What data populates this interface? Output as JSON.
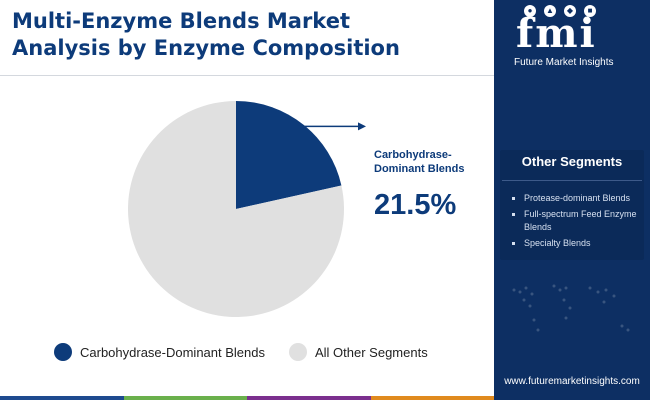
{
  "title": {
    "line1": "Multi-Enzyme Blends Market",
    "line2": "Analysis by Enzyme Composition"
  },
  "chart_data": {
    "type": "pie",
    "slices": [
      {
        "label": "Carbohydrase-Dominant Blends",
        "value": 21.5,
        "color": "#0d3b7a"
      },
      {
        "label": "All Other Segments",
        "value": 78.5,
        "color": "#e0e0e0"
      }
    ],
    "annotation": {
      "label_line1": "Carbohydrase-",
      "label_line2": "Dominant Blends",
      "value_text": "21.5%"
    },
    "legend": {
      "placement": "bottom",
      "items": [
        {
          "label": "Carbohydrase-Dominant Blends",
          "color": "#0d3b7a"
        },
        {
          "label": "All Other Segments",
          "color": "#e0e0e0"
        }
      ]
    }
  },
  "side_panel": {
    "logo_text": "fmi",
    "logo_sub": "Future Market Insights",
    "segments_title": "Other Segments",
    "segments": [
      "Protease-dominant Blends",
      "Full-spectrum Feed Enzyme Blends",
      "Specialty Blends"
    ],
    "url": "www.futuremarketinsights.com"
  },
  "bottom_bar_colors": [
    "#1e4a8f",
    "#6ab04c",
    "#7b2f8e",
    "#e08a1e"
  ]
}
